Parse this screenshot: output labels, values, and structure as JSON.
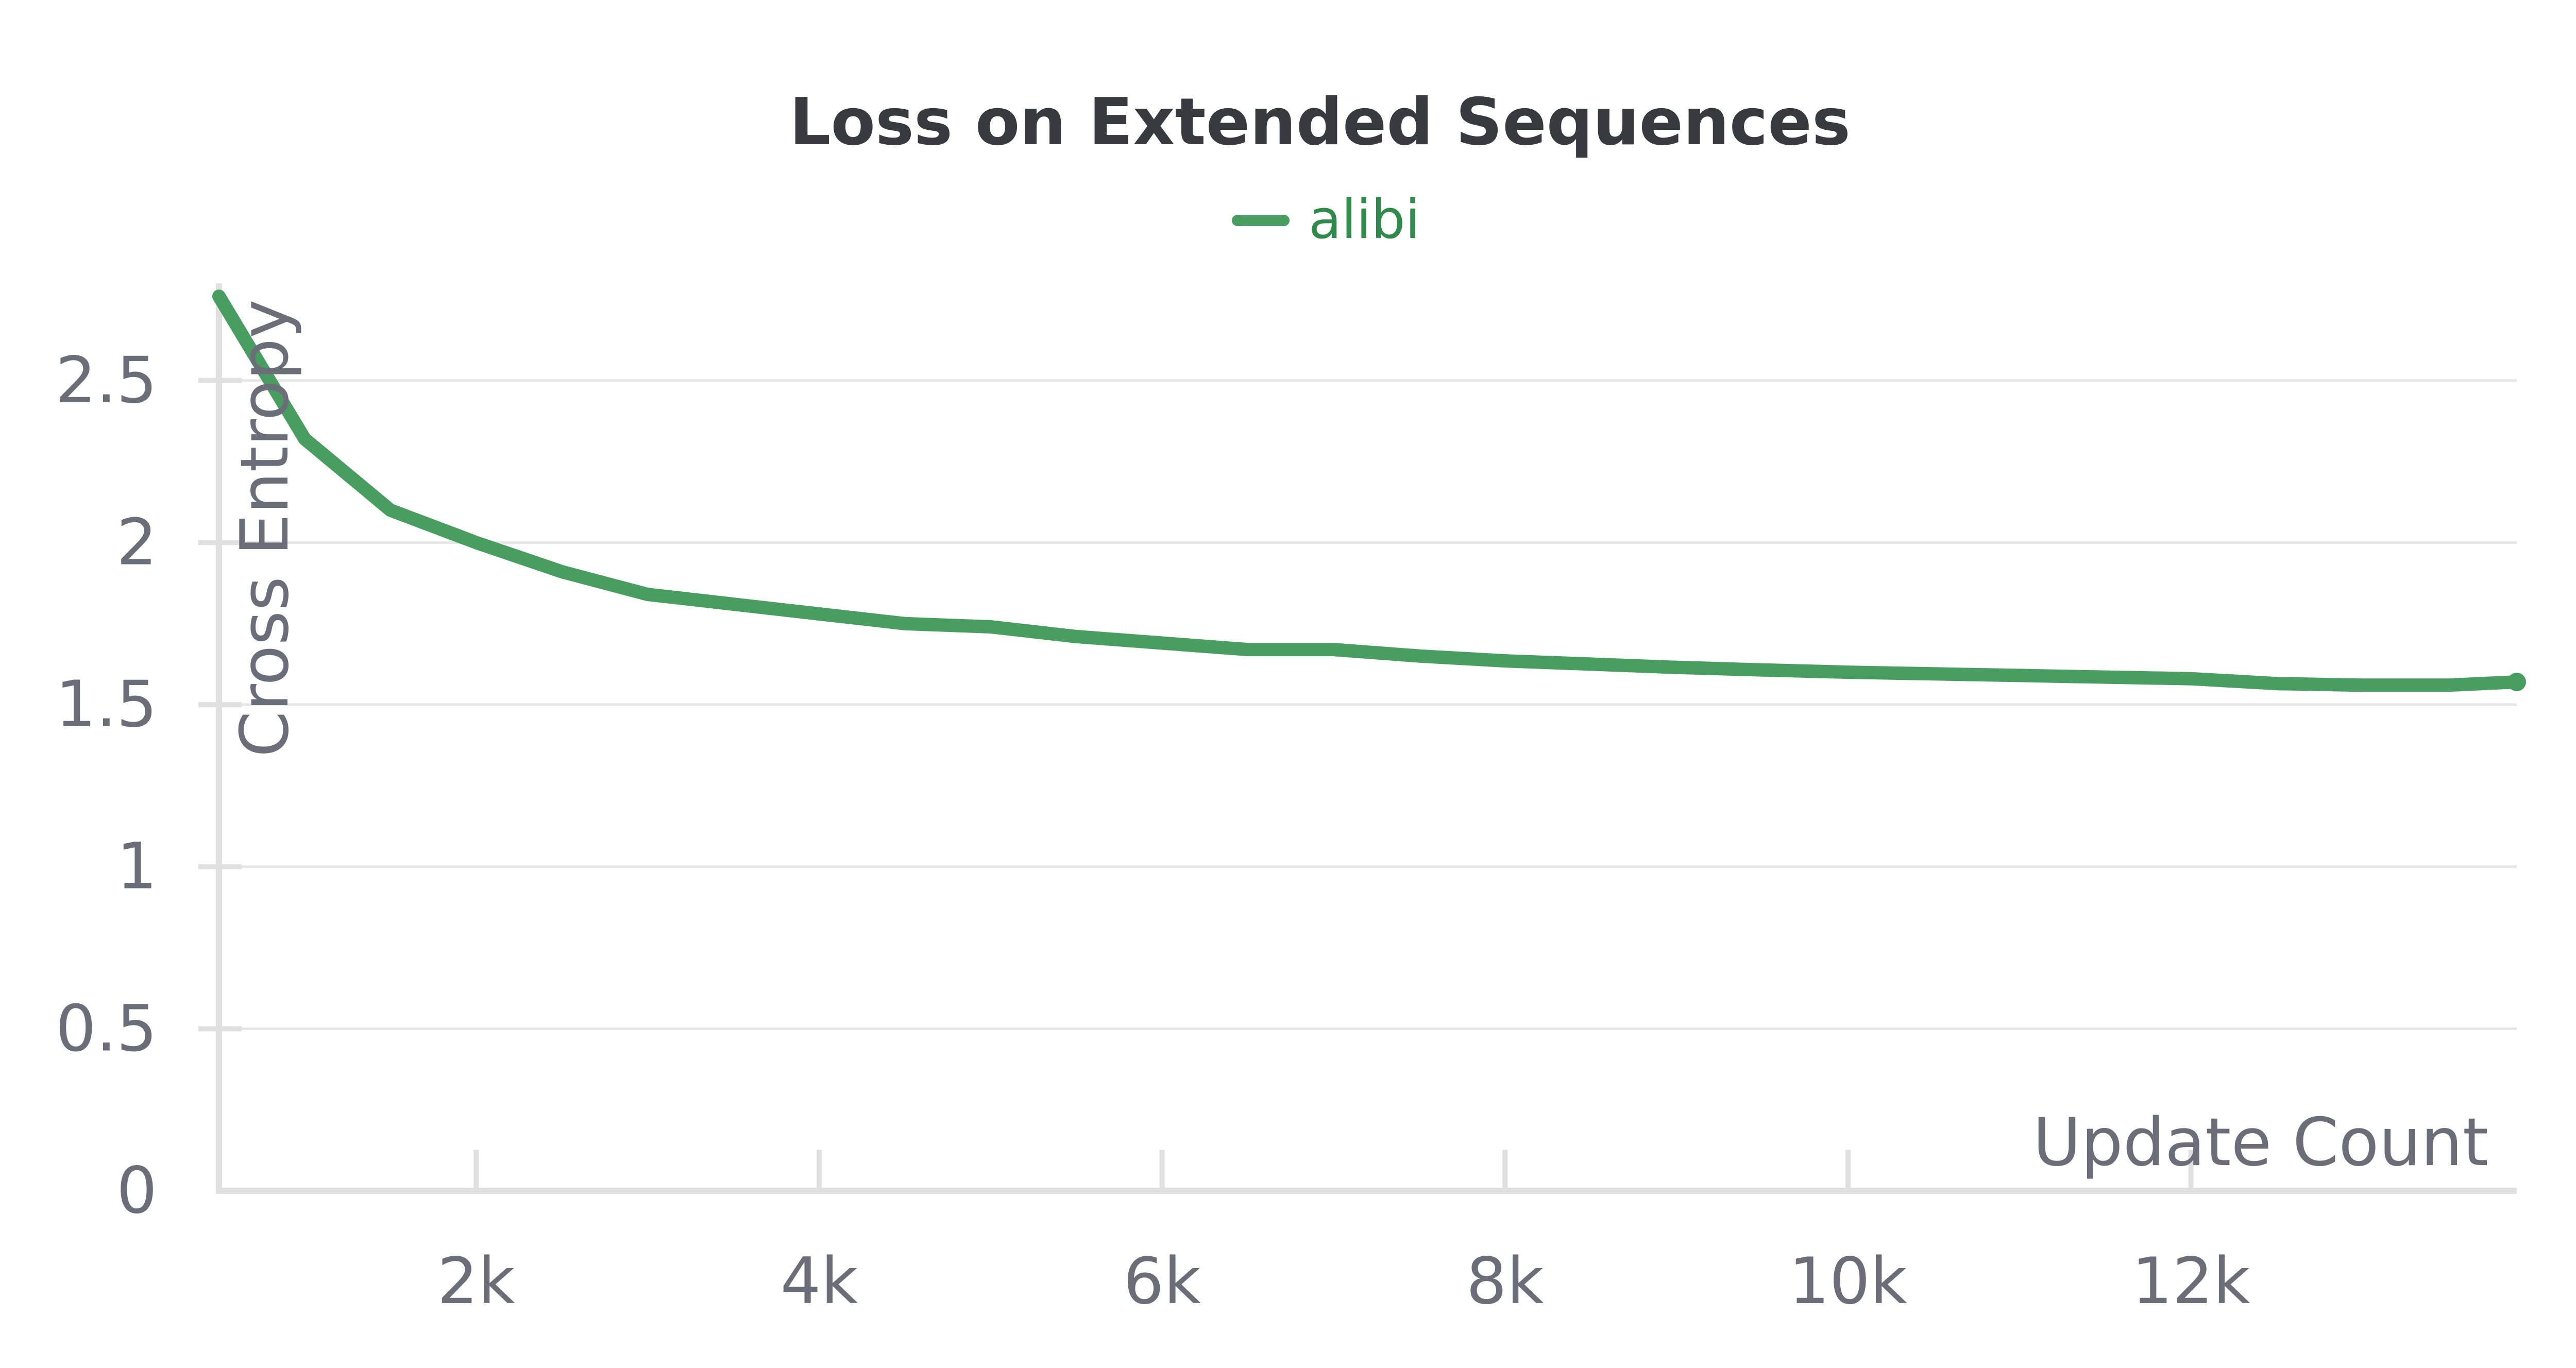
{
  "chart_data": {
    "type": "line",
    "title": "Loss on Extended Sequences",
    "xlabel": "Update Count",
    "ylabel": "Cross Entropy",
    "xlim": [
      500,
      13900
    ],
    "ylim": [
      0,
      2.8
    ],
    "grid": true,
    "legend_position": "top-center",
    "x_ticks": [
      {
        "value": 2000,
        "label": "2k"
      },
      {
        "value": 4000,
        "label": "4k"
      },
      {
        "value": 6000,
        "label": "6k"
      },
      {
        "value": 8000,
        "label": "8k"
      },
      {
        "value": 10000,
        "label": "10k"
      },
      {
        "value": 12000,
        "label": "12k"
      }
    ],
    "y_ticks": [
      {
        "value": 0,
        "label": "0"
      },
      {
        "value": 0.5,
        "label": "0.5"
      },
      {
        "value": 1,
        "label": "1"
      },
      {
        "value": 1.5,
        "label": "1.5"
      },
      {
        "value": 2,
        "label": "2"
      },
      {
        "value": 2.5,
        "label": "2.5"
      }
    ],
    "series": [
      {
        "name": "alibi",
        "color": "#4a9d61",
        "x": [
          500,
          1000,
          1500,
          2000,
          2500,
          3000,
          3500,
          4000,
          4500,
          5000,
          5500,
          6000,
          6500,
          7000,
          7500,
          8000,
          8500,
          9000,
          9500,
          10000,
          10500,
          11000,
          11500,
          12000,
          12500,
          13000,
          13500,
          13900
        ],
        "y": [
          2.76,
          2.32,
          2.1,
          2.0,
          1.91,
          1.84,
          1.81,
          1.78,
          1.75,
          1.74,
          1.71,
          1.69,
          1.67,
          1.67,
          1.65,
          1.635,
          1.625,
          1.615,
          1.607,
          1.6,
          1.595,
          1.59,
          1.585,
          1.58,
          1.565,
          1.56,
          1.56,
          1.57
        ]
      }
    ]
  }
}
